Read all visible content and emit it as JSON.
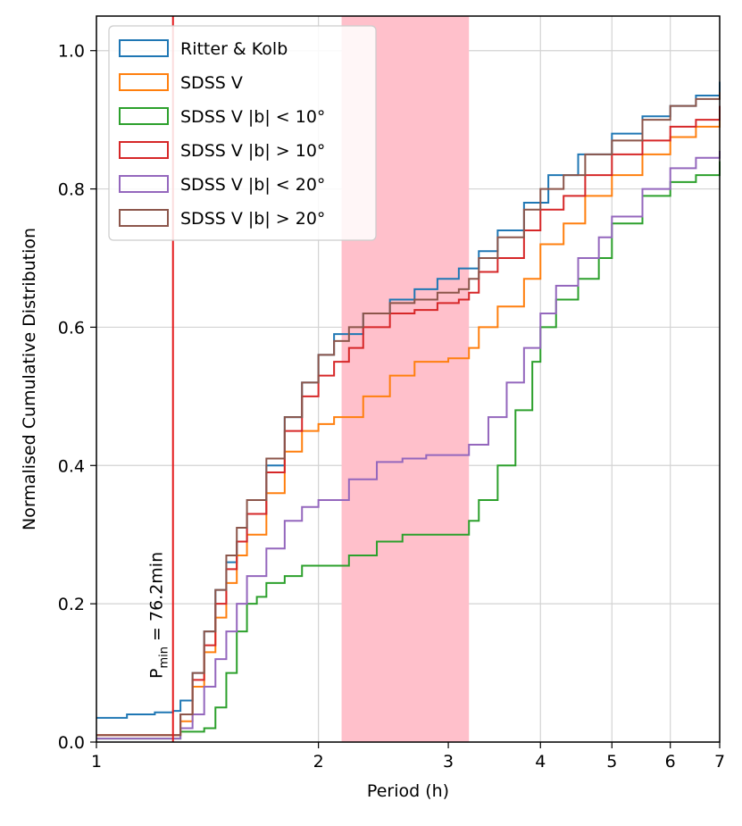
{
  "chart_data": {
    "type": "line",
    "step": true,
    "xscale": "log",
    "xlim": [
      1,
      7
    ],
    "ylim": [
      0,
      1.05
    ],
    "xlabel": "Period (h)",
    "ylabel": "Normalised Cumulative Distribution",
    "xticks": [
      1,
      2,
      3,
      4,
      5,
      6,
      7
    ],
    "xtick_labels": [
      "1",
      "2",
      "3",
      "4",
      "5",
      "6",
      "7"
    ],
    "yticks": [
      0.0,
      0.2,
      0.4,
      0.6,
      0.8,
      1.0
    ],
    "ytick_labels": [
      "0.0",
      "0.2",
      "0.4",
      "0.6",
      "0.8",
      "1.0"
    ],
    "grid": true,
    "legend_position": "top-left",
    "shaded_region": {
      "x_start": 2.15,
      "x_end": 3.2,
      "color": "#ffc0cb"
    },
    "vline": {
      "x": 1.27,
      "color": "#e41a1c",
      "label_main": "P",
      "label_sub": "min",
      "label_rest": " = 76.2min"
    },
    "series": [
      {
        "name": "Ritter & Kolb",
        "color": "#1f77b4",
        "x": [
          1.0,
          1.1,
          1.2,
          1.27,
          1.3,
          1.35,
          1.4,
          1.45,
          1.5,
          1.55,
          1.6,
          1.7,
          1.8,
          1.9,
          2.0,
          2.1,
          2.3,
          2.5,
          2.7,
          2.9,
          3.1,
          3.3,
          3.5,
          3.8,
          4.1,
          4.5,
          5.0,
          5.5,
          6.0,
          6.5,
          7.0
        ],
        "y": [
          0.035,
          0.04,
          0.043,
          0.045,
          0.06,
          0.1,
          0.16,
          0.22,
          0.26,
          0.29,
          0.33,
          0.4,
          0.47,
          0.52,
          0.56,
          0.59,
          0.62,
          0.64,
          0.655,
          0.67,
          0.685,
          0.71,
          0.74,
          0.78,
          0.82,
          0.85,
          0.88,
          0.905,
          0.92,
          0.935,
          0.955
        ]
      },
      {
        "name": "SDSS V",
        "color": "#ff7f0e",
        "x": [
          1.0,
          1.27,
          1.3,
          1.35,
          1.4,
          1.45,
          1.5,
          1.55,
          1.6,
          1.7,
          1.8,
          1.9,
          2.0,
          2.1,
          2.3,
          2.5,
          2.7,
          3.0,
          3.2,
          3.3,
          3.5,
          3.8,
          4.0,
          4.3,
          4.6,
          5.0,
          5.5,
          6.0,
          6.5,
          7.0
        ],
        "y": [
          0.01,
          0.01,
          0.03,
          0.08,
          0.13,
          0.18,
          0.23,
          0.27,
          0.3,
          0.36,
          0.42,
          0.45,
          0.46,
          0.47,
          0.5,
          0.53,
          0.55,
          0.555,
          0.57,
          0.6,
          0.63,
          0.67,
          0.72,
          0.75,
          0.79,
          0.82,
          0.85,
          0.875,
          0.89,
          0.905
        ]
      },
      {
        "name": "SDSS V |b| < 10°",
        "color": "#2ca02c",
        "x": [
          1.0,
          1.27,
          1.3,
          1.4,
          1.45,
          1.5,
          1.55,
          1.6,
          1.65,
          1.7,
          1.8,
          1.9,
          2.0,
          2.2,
          2.4,
          2.6,
          2.8,
          3.0,
          3.2,
          3.3,
          3.5,
          3.7,
          3.9,
          4.0,
          4.2,
          4.5,
          4.8,
          5.0,
          5.5,
          6.0,
          6.5,
          7.0
        ],
        "y": [
          0.005,
          0.005,
          0.015,
          0.02,
          0.05,
          0.1,
          0.16,
          0.2,
          0.21,
          0.23,
          0.24,
          0.255,
          0.255,
          0.27,
          0.29,
          0.3,
          0.3,
          0.3,
          0.32,
          0.35,
          0.4,
          0.48,
          0.55,
          0.6,
          0.64,
          0.67,
          0.7,
          0.75,
          0.79,
          0.81,
          0.82,
          0.84
        ]
      },
      {
        "name": "SDSS V |b| > 10°",
        "color": "#d62728",
        "x": [
          1.0,
          1.27,
          1.3,
          1.35,
          1.4,
          1.45,
          1.5,
          1.55,
          1.6,
          1.7,
          1.8,
          1.9,
          2.0,
          2.1,
          2.2,
          2.3,
          2.5,
          2.7,
          2.9,
          3.1,
          3.2,
          3.3,
          3.5,
          3.8,
          4.0,
          4.3,
          4.6,
          5.0,
          5.5,
          6.0,
          6.5,
          7.0
        ],
        "y": [
          0.01,
          0.01,
          0.04,
          0.09,
          0.14,
          0.2,
          0.25,
          0.29,
          0.33,
          0.39,
          0.45,
          0.5,
          0.53,
          0.55,
          0.57,
          0.6,
          0.62,
          0.625,
          0.635,
          0.64,
          0.65,
          0.68,
          0.7,
          0.74,
          0.77,
          0.79,
          0.82,
          0.85,
          0.87,
          0.89,
          0.9,
          0.92
        ]
      },
      {
        "name": "SDSS V |b| < 20°",
        "color": "#9467bd",
        "x": [
          1.0,
          1.27,
          1.3,
          1.35,
          1.4,
          1.45,
          1.5,
          1.55,
          1.6,
          1.7,
          1.8,
          1.9,
          2.0,
          2.2,
          2.4,
          2.6,
          2.8,
          3.0,
          3.2,
          3.4,
          3.6,
          3.8,
          4.0,
          4.2,
          4.5,
          4.8,
          5.0,
          5.5,
          6.0,
          6.5,
          7.0
        ],
        "y": [
          0.005,
          0.005,
          0.02,
          0.04,
          0.08,
          0.12,
          0.16,
          0.2,
          0.24,
          0.28,
          0.32,
          0.34,
          0.35,
          0.38,
          0.405,
          0.41,
          0.415,
          0.415,
          0.43,
          0.47,
          0.52,
          0.57,
          0.62,
          0.66,
          0.7,
          0.73,
          0.76,
          0.8,
          0.83,
          0.845,
          0.855
        ]
      },
      {
        "name": "SDSS V |b| > 20°",
        "color": "#8c564b",
        "x": [
          1.0,
          1.27,
          1.3,
          1.35,
          1.4,
          1.45,
          1.5,
          1.55,
          1.6,
          1.7,
          1.8,
          1.9,
          2.0,
          2.1,
          2.2,
          2.3,
          2.5,
          2.7,
          2.9,
          3.1,
          3.2,
          3.3,
          3.5,
          3.8,
          4.0,
          4.3,
          4.6,
          5.0,
          5.5,
          6.0,
          6.5,
          7.0
        ],
        "y": [
          0.01,
          0.01,
          0.04,
          0.1,
          0.16,
          0.22,
          0.27,
          0.31,
          0.35,
          0.41,
          0.47,
          0.52,
          0.56,
          0.58,
          0.6,
          0.62,
          0.635,
          0.64,
          0.65,
          0.655,
          0.67,
          0.7,
          0.73,
          0.77,
          0.8,
          0.82,
          0.85,
          0.87,
          0.9,
          0.92,
          0.93,
          0.94
        ]
      }
    ]
  }
}
